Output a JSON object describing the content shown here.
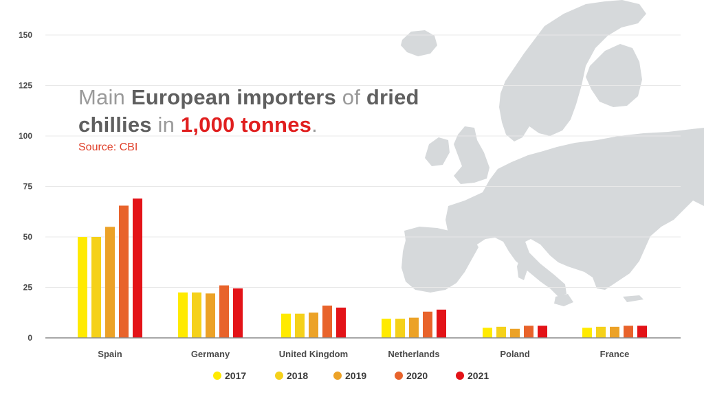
{
  "title": {
    "parts": [
      {
        "text": "Main ",
        "style": "light"
      },
      {
        "text": "European importers",
        "style": "bold"
      },
      {
        "text": " of ",
        "style": "light"
      },
      {
        "text": "dried",
        "style": "bold"
      },
      {
        "text": "chillies",
        "style": "bold"
      },
      {
        "text": " in ",
        "style": "light"
      },
      {
        "text": "1,000 tonnes",
        "style": "red"
      },
      {
        "text": ".",
        "style": "light"
      }
    ]
  },
  "source": "Source: CBI",
  "colors": {
    "text_dark": "#5f5f5f",
    "text_light": "#9a9a9a",
    "accent_red": "#e01f1f",
    "map_gray": "#d6d9db",
    "grid": "#e6e6e6"
  },
  "chart_data": {
    "type": "bar",
    "title": "Main European importers of dried chillies in 1,000 tonnes.",
    "categories": [
      "Spain",
      "Germany",
      "United Kingdom",
      "Netherlands",
      "Poland",
      "France"
    ],
    "series": [
      {
        "name": "2017",
        "color": "#ffea00",
        "values": [
          50,
          22.5,
          12,
          9.5,
          5,
          5
        ]
      },
      {
        "name": "2018",
        "color": "#f5d11a",
        "values": [
          50,
          22.5,
          12,
          9.5,
          5.5,
          5.5
        ]
      },
      {
        "name": "2019",
        "color": "#eca227",
        "values": [
          55,
          22,
          12.5,
          10,
          4.5,
          5.5
        ]
      },
      {
        "name": "2020",
        "color": "#e8632b",
        "values": [
          65.5,
          26,
          16,
          13,
          6,
          6
        ]
      },
      {
        "name": "2021",
        "color": "#e31318",
        "values": [
          69,
          24.5,
          15,
          14,
          6,
          6
        ]
      }
    ],
    "yticks": [
      0,
      25,
      50,
      75,
      100,
      125,
      150
    ],
    "ylim": [
      0,
      150
    ],
    "grid": true,
    "legend_position": "bottom"
  }
}
